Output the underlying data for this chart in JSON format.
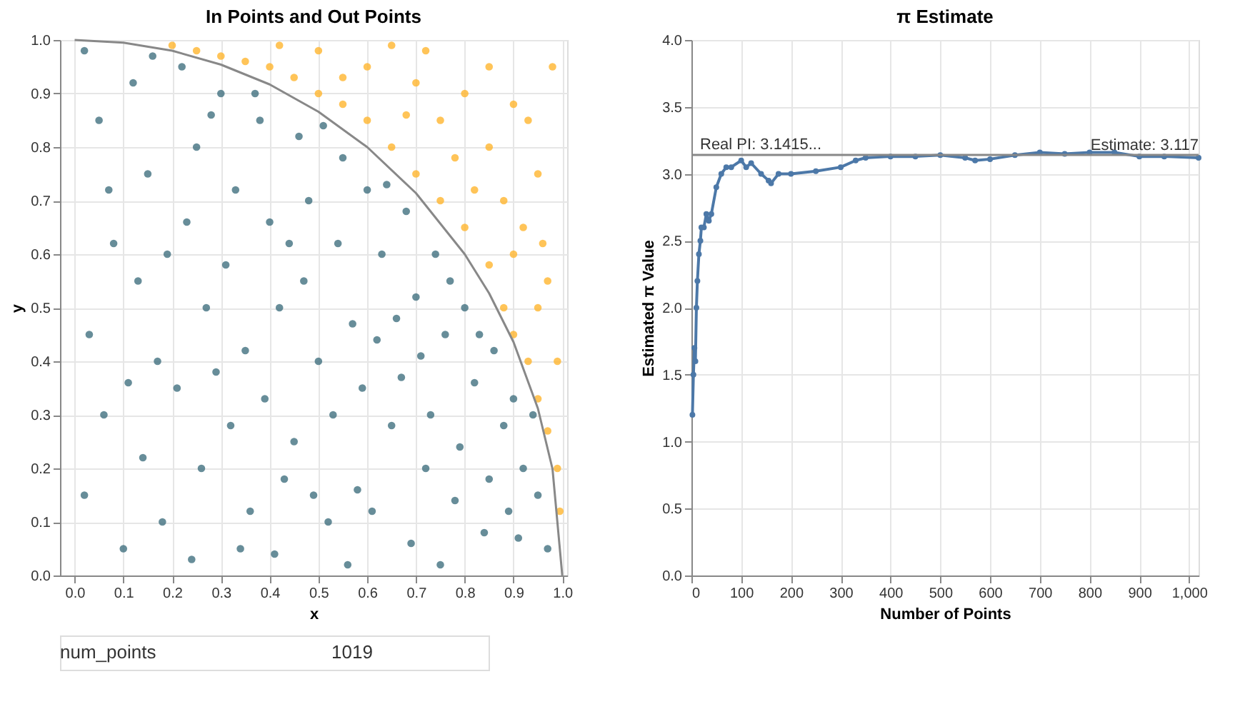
{
  "chart_data": [
    {
      "type": "scatter",
      "title": "In Points and Out Points",
      "xlabel": "x",
      "ylabel": "y",
      "xlim": [
        -0.03,
        1.01
      ],
      "ylim": [
        0,
        1
      ],
      "xticks": [
        {
          "value": 0,
          "label": "0.0"
        },
        {
          "value": 0.1,
          "label": "0.1"
        },
        {
          "value": 0.2,
          "label": "0.2"
        },
        {
          "value": 0.3,
          "label": "0.3"
        },
        {
          "value": 0.4,
          "label": "0.4"
        },
        {
          "value": 0.5,
          "label": "0.5"
        },
        {
          "value": 0.6,
          "label": "0.6"
        },
        {
          "value": 0.7,
          "label": "0.7"
        },
        {
          "value": 0.8,
          "label": "0.8"
        },
        {
          "value": 0.9,
          "label": "0.9"
        },
        {
          "value": 1,
          "label": "1.0"
        }
      ],
      "yticks": [
        {
          "value": 0,
          "label": "0.0"
        },
        {
          "value": 0.1,
          "label": "0.1"
        },
        {
          "value": 0.2,
          "label": "0.2"
        },
        {
          "value": 0.3,
          "label": "0.3"
        },
        {
          "value": 0.4,
          "label": "0.4"
        },
        {
          "value": 0.5,
          "label": "0.5"
        },
        {
          "value": 0.6,
          "label": "0.6"
        },
        {
          "value": 0.7,
          "label": "0.7"
        },
        {
          "value": 0.8,
          "label": "0.8"
        },
        {
          "value": 0.9,
          "label": "0.9"
        },
        {
          "value": 1,
          "label": "1.0"
        }
      ],
      "grid": true,
      "marker": "circle",
      "annotations": [
        "num_points",
        "1019"
      ],
      "series": [
        {
          "color": "#ffb52e",
          "x": [
            0.2,
            0.25,
            0.3,
            0.35,
            0.4,
            0.45,
            0.5,
            0.55,
            0.6,
            0.65,
            0.7,
            0.75,
            0.8,
            0.85,
            0.88,
            0.9,
            0.93,
            0.95,
            0.97,
            0.99,
            0.5,
            0.6,
            0.7,
            0.8,
            0.9,
            0.98,
            0.65,
            0.75,
            0.85,
            0.95,
            0.72,
            0.82,
            0.92,
            0.97,
            0.9,
            0.78,
            0.88,
            0.95,
            0.99,
            0.93,
            0.42,
            0.55,
            0.68,
            0.85,
            0.995,
            0.96
          ],
          "values": [
            0.99,
            0.98,
            0.97,
            0.96,
            0.95,
            0.93,
            0.9,
            0.88,
            0.85,
            0.8,
            0.75,
            0.7,
            0.65,
            0.58,
            0.5,
            0.45,
            0.4,
            0.33,
            0.27,
            0.2,
            0.98,
            0.95,
            0.92,
            0.9,
            0.88,
            0.95,
            0.99,
            0.85,
            0.8,
            0.75,
            0.98,
            0.72,
            0.65,
            0.55,
            0.6,
            0.78,
            0.7,
            0.5,
            0.4,
            0.85,
            0.99,
            0.93,
            0.86,
            0.95,
            0.12,
            0.62
          ]
        },
        {
          "color": "#41707f",
          "x": [
            0.02,
            0.05,
            0.08,
            0.03,
            0.06,
            0.02,
            0.1,
            0.12,
            0.15,
            0.13,
            0.17,
            0.14,
            0.18,
            0.22,
            0.25,
            0.23,
            0.27,
            0.21,
            0.26,
            0.24,
            0.3,
            0.33,
            0.31,
            0.35,
            0.32,
            0.36,
            0.38,
            0.4,
            0.42,
            0.39,
            0.43,
            0.41,
            0.46,
            0.48,
            0.47,
            0.5,
            0.45,
            0.52,
            0.55,
            0.54,
            0.57,
            0.53,
            0.58,
            0.56,
            0.6,
            0.63,
            0.62,
            0.65,
            0.61,
            0.68,
            0.7,
            0.67,
            0.72,
            0.69,
            0.74,
            0.76,
            0.73,
            0.78,
            0.8,
            0.82,
            0.79,
            0.84,
            0.86,
            0.88,
            0.85,
            0.9,
            0.92,
            0.91,
            0.95,
            0.97,
            0.94,
            0.07,
            0.19,
            0.29,
            0.44,
            0.51,
            0.64,
            0.75,
            0.59,
            0.37,
            0.11,
            0.16,
            0.34,
            0.49,
            0.66,
            0.77,
            0.83,
            0.89,
            0.71,
            0.28
          ],
          "values": [
            0.98,
            0.85,
            0.62,
            0.45,
            0.3,
            0.15,
            0.05,
            0.92,
            0.75,
            0.55,
            0.4,
            0.22,
            0.1,
            0.95,
            0.8,
            0.66,
            0.5,
            0.35,
            0.2,
            0.03,
            0.9,
            0.72,
            0.58,
            0.42,
            0.28,
            0.12,
            0.85,
            0.66,
            0.5,
            0.33,
            0.18,
            0.04,
            0.82,
            0.7,
            0.55,
            0.4,
            0.25,
            0.1,
            0.78,
            0.62,
            0.47,
            0.3,
            0.16,
            0.02,
            0.72,
            0.6,
            0.44,
            0.28,
            0.12,
            0.68,
            0.52,
            0.37,
            0.2,
            0.06,
            0.6,
            0.45,
            0.3,
            0.14,
            0.5,
            0.36,
            0.24,
            0.08,
            0.42,
            0.28,
            0.18,
            0.33,
            0.2,
            0.07,
            0.15,
            0.05,
            0.3,
            0.72,
            0.6,
            0.38,
            0.62,
            0.84,
            0.73,
            0.02,
            0.35,
            0.9,
            0.36,
            0.97,
            0.05,
            0.15,
            0.48,
            0.55,
            0.45,
            0.12,
            0.41,
            0.86
          ]
        },
        {
          "type": "line",
          "color": "#888888",
          "marker": "none",
          "x": [
            0,
            0.1,
            0.2,
            0.3,
            0.4,
            0.5,
            0.6,
            0.7,
            0.8,
            0.85,
            0.9,
            0.95,
            0.98,
            1.0
          ],
          "values": [
            1,
            0.995,
            0.98,
            0.954,
            0.917,
            0.866,
            0.8,
            0.714,
            0.6,
            0.527,
            0.436,
            0.312,
            0.199,
            0
          ]
        }
      ]
    },
    {
      "type": "line",
      "title": "π Estimate",
      "xlabel": "Number of Points",
      "ylabel": "Estimated π Value",
      "xlim": [
        0,
        1019
      ],
      "ylim": [
        0,
        4
      ],
      "xticks": [
        0,
        100,
        200,
        300,
        400,
        500,
        600,
        700,
        800,
        900,
        {
          "value": 1000,
          "label": "1,000"
        }
      ],
      "yticks": [
        {
          "value": 0,
          "label": "0.0"
        },
        {
          "value": 0.5,
          "label": "0.5"
        },
        {
          "value": 1,
          "label": "1.0"
        },
        {
          "value": 1.5,
          "label": "1.5"
        },
        {
          "value": 2,
          "label": "2.0"
        },
        {
          "value": 2.5,
          "label": "2.5"
        },
        {
          "value": 3,
          "label": "3.0"
        },
        {
          "value": 3.5,
          "label": "3.5"
        },
        {
          "value": 4,
          "label": "4.0"
        }
      ],
      "grid": true,
      "marker": "circle",
      "ref_lines": [
        {
          "axis": "y",
          "value": 3.1415,
          "label": "Real PI: 3.1415...",
          "color": "#888888"
        }
      ],
      "annotations": [
        {
          "text": "Estimate: 3.117",
          "x": 1019,
          "y": 3.117
        }
      ],
      "series": [
        {
          "color": "#4c78a8",
          "x": [
            2,
            4,
            6,
            8,
            10,
            12,
            15,
            18,
            20,
            25,
            30,
            35,
            40,
            50,
            60,
            70,
            80,
            100,
            110,
            120,
            140,
            155,
            160,
            175,
            200,
            250,
            300,
            330,
            350,
            400,
            450,
            500,
            550,
            570,
            600,
            650,
            700,
            750,
            800,
            850,
            900,
            950,
            1019
          ],
          "values": [
            1.2,
            1.5,
            1.7,
            1.6,
            2.0,
            2.2,
            2.4,
            2.5,
            2.6,
            2.6,
            2.7,
            2.65,
            2.7,
            2.9,
            3.0,
            3.05,
            3.05,
            3.1,
            3.05,
            3.08,
            3.0,
            2.95,
            2.93,
            3.0,
            3.0,
            3.02,
            3.05,
            3.1,
            3.12,
            3.13,
            3.13,
            3.14,
            3.12,
            3.1,
            3.11,
            3.14,
            3.16,
            3.15,
            3.16,
            3.16,
            3.13,
            3.13,
            3.12
          ]
        }
      ]
    }
  ]
}
